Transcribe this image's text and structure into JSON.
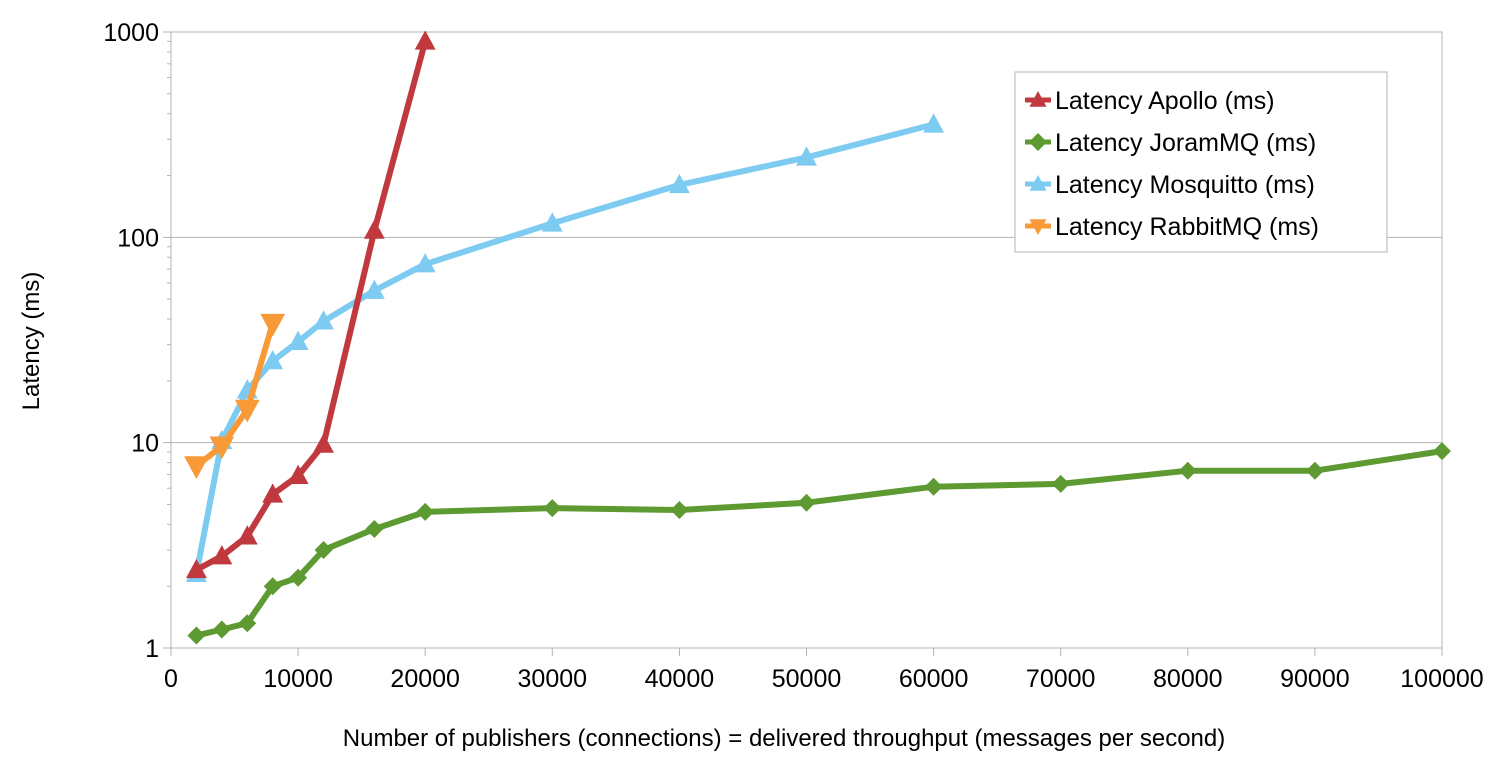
{
  "chart_data": {
    "type": "line",
    "title": "",
    "xlabel": "Number of publishers (connections) = delivered throughput (messages per second)",
    "ylabel": "Latency (ms)",
    "xlim": [
      0,
      100000
    ],
    "ylim": [
      1,
      1000
    ],
    "yscale": "log",
    "x_ticks": [
      0,
      10000,
      20000,
      30000,
      40000,
      50000,
      60000,
      70000,
      80000,
      90000,
      100000
    ],
    "y_ticks": [
      1,
      10,
      100,
      1000
    ],
    "x_tick_labels": [
      "0",
      "10000",
      "20000",
      "30000",
      "40000",
      "50000",
      "60000",
      "70000",
      "80000",
      "90000",
      "100000"
    ],
    "y_tick_labels": [
      "1",
      "10",
      "100",
      "1000"
    ],
    "grid": "horizontal",
    "legend_position": "top-right",
    "series": [
      {
        "name": "Latency Apollo (ms)",
        "color": "#c0393f",
        "marker": "triangle-up",
        "x": [
          2000,
          4000,
          6000,
          8000,
          10000,
          12000,
          16000,
          20000
        ],
        "y": [
          2.4,
          2.8,
          3.5,
          5.6,
          6.9,
          9.8,
          108,
          900
        ]
      },
      {
        "name": "Latency JoramMQ (ms)",
        "color": "#5d9a32",
        "marker": "diamond",
        "x": [
          2000,
          4000,
          6000,
          8000,
          10000,
          12000,
          16000,
          20000,
          30000,
          40000,
          50000,
          60000,
          70000,
          80000,
          90000,
          100000
        ],
        "y": [
          1.15,
          1.23,
          1.32,
          2.0,
          2.2,
          3.0,
          3.8,
          4.6,
          4.8,
          4.7,
          5.1,
          6.1,
          6.3,
          7.3,
          7.3,
          9.1
        ]
      },
      {
        "name": "Latency Mosquitto (ms)",
        "color": "#7ecbf2",
        "marker": "triangle-up",
        "x": [
          2000,
          4000,
          6000,
          8000,
          10000,
          12000,
          16000,
          20000,
          30000,
          40000,
          50000,
          60000
        ],
        "y": [
          2.3,
          10.2,
          18,
          25,
          31,
          39,
          55,
          74,
          117,
          180,
          245,
          355
        ]
      },
      {
        "name": "Latency RabbitMQ (ms)",
        "color": "#f89a38",
        "marker": "triangle-down",
        "x": [
          2000,
          4000,
          6000,
          8000
        ],
        "y": [
          7.7,
          9.6,
          14.5,
          38
        ]
      }
    ]
  }
}
